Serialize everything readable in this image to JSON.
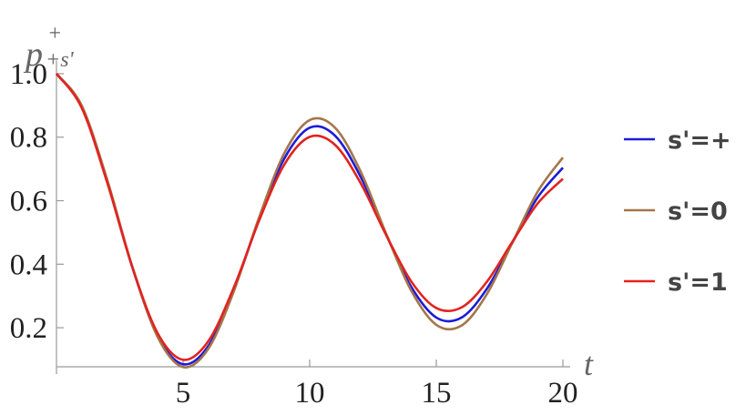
{
  "chart_data": {
    "type": "line",
    "y_label": "p",
    "y_label_sup": "+",
    "y_label_sub": "+s'",
    "x_label": "t",
    "x": [
      0,
      1,
      2,
      3,
      4,
      5,
      6,
      7,
      8,
      9,
      10,
      11,
      12,
      13,
      14,
      15,
      16,
      17,
      18,
      19,
      20
    ],
    "series": [
      {
        "name": "s'=+",
        "color": "#1c1cd8",
        "values": [
          1.0,
          0.895,
          0.662,
          0.389,
          0.174,
          0.085,
          0.143,
          0.318,
          0.541,
          0.733,
          0.83,
          0.805,
          0.677,
          0.497,
          0.33,
          0.232,
          0.232,
          0.323,
          0.467,
          0.61,
          0.704
        ]
      },
      {
        "name": "s'=0",
        "color": "#a5764a",
        "values": [
          1.0,
          0.899,
          0.667,
          0.391,
          0.17,
          0.076,
          0.134,
          0.314,
          0.547,
          0.75,
          0.854,
          0.83,
          0.694,
          0.5,
          0.318,
          0.209,
          0.207,
          0.306,
          0.467,
          0.628,
          0.736
        ]
      },
      {
        "name": "s'=1",
        "color": "#e2231f",
        "values": [
          1.0,
          0.892,
          0.658,
          0.39,
          0.182,
          0.099,
          0.158,
          0.326,
          0.537,
          0.714,
          0.801,
          0.776,
          0.657,
          0.495,
          0.347,
          0.262,
          0.264,
          0.345,
          0.47,
          0.591,
          0.669
        ]
      }
    ],
    "xlim": [
      0,
      20
    ],
    "ylim": [
      0.077,
      1.03
    ],
    "xticks": [
      5,
      10,
      15,
      20
    ],
    "yticks": [
      0.2,
      0.4,
      0.6,
      0.8,
      {
        "value": 1.0,
        "label": "1.0"
      }
    ],
    "legend": "right"
  }
}
